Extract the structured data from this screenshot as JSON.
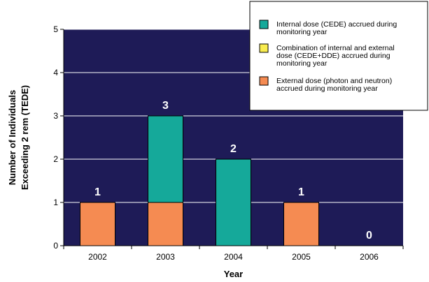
{
  "chart_data": {
    "type": "bar",
    "stacked": true,
    "categories": [
      "2002",
      "2003",
      "2004",
      "2005",
      "2006"
    ],
    "series": [
      {
        "key": "external",
        "name": "External dose (photon and neutron) accrued during monitoring year",
        "color": "#f58b52",
        "values": [
          1,
          1,
          0,
          1,
          0
        ]
      },
      {
        "key": "combined",
        "name": "Combination of internal and external dose (CEDE+DDE) accrued during monitoring year",
        "color": "#f8ec4f",
        "values": [
          0,
          0,
          0,
          0,
          0
        ]
      },
      {
        "key": "internal",
        "name": "Internal dose (CEDE) accrued during monitoring year",
        "color": "#15a99a",
        "values": [
          0,
          2,
          2,
          0,
          0
        ]
      }
    ],
    "totals": [
      "1",
      "3",
      "2",
      "1",
      "0"
    ],
    "ylim": [
      0,
      5
    ],
    "yticks": [
      "0",
      "1",
      "2",
      "3",
      "4",
      "5"
    ],
    "xlabel": "Year",
    "ylabel_lines": [
      "Number of Individuals",
      "Exceeding 2 rem (TEDE)"
    ],
    "legend_position": "top-right",
    "legend_order": [
      "internal",
      "combined",
      "external"
    ],
    "legend_lines": {
      "internal": [
        "Internal dose (CEDE) accrued during",
        "monitoring year"
      ],
      "combined": [
        "Combination of internal and external",
        "dose (CEDE+DDE) accrued during",
        "monitoring year"
      ],
      "external": [
        "External dose (photon and neutron)",
        "accrued during monitoring year"
      ]
    },
    "plot_background": "#1e1b57",
    "grid": true
  }
}
